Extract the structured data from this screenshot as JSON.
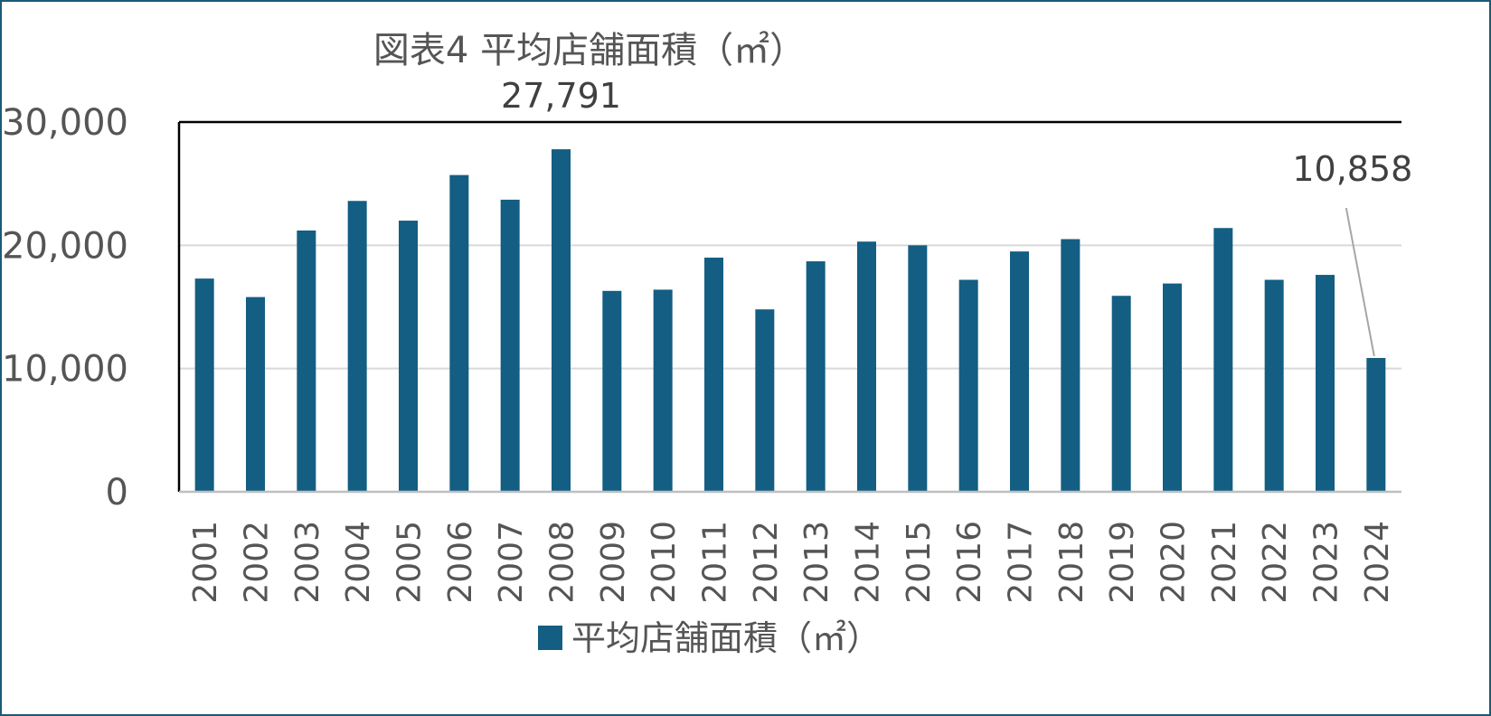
{
  "chart_data": {
    "type": "bar",
    "title": "図表4 平均店舗面積（㎡）",
    "categories": [
      "2001",
      "2002",
      "2003",
      "2004",
      "2005",
      "2006",
      "2007",
      "2008",
      "2009",
      "2010",
      "2011",
      "2012",
      "2013",
      "2014",
      "2015",
      "2016",
      "2017",
      "2018",
      "2019",
      "2020",
      "2021",
      "2022",
      "2023",
      "2024"
    ],
    "series": [
      {
        "name": "平均店舗面積（㎡）",
        "color": "#135e82",
        "values": [
          17300,
          15800,
          21200,
          23600,
          22000,
          25700,
          23700,
          27791,
          16300,
          16400,
          19000,
          14800,
          18700,
          20300,
          20000,
          17200,
          19500,
          20500,
          15900,
          16900,
          21400,
          17200,
          17600,
          10858
        ]
      }
    ],
    "data_labels": [
      {
        "category": "2008",
        "text": "27,791"
      },
      {
        "category": "2024",
        "text": "10,858"
      }
    ],
    "ylim": [
      0,
      30000
    ],
    "yticks": [
      {
        "value": 0,
        "label": "0"
      },
      {
        "value": 10000,
        "label": "10,000"
      },
      {
        "value": 20000,
        "label": "20,000"
      },
      {
        "value": 30000,
        "label": "30,000"
      }
    ],
    "grid": true,
    "legend_position": "bottom",
    "colors": {
      "bar": "#135e82",
      "grid": "#d9d9d9",
      "frame": "#1a5a78",
      "leader": "#a6a6a6"
    }
  }
}
